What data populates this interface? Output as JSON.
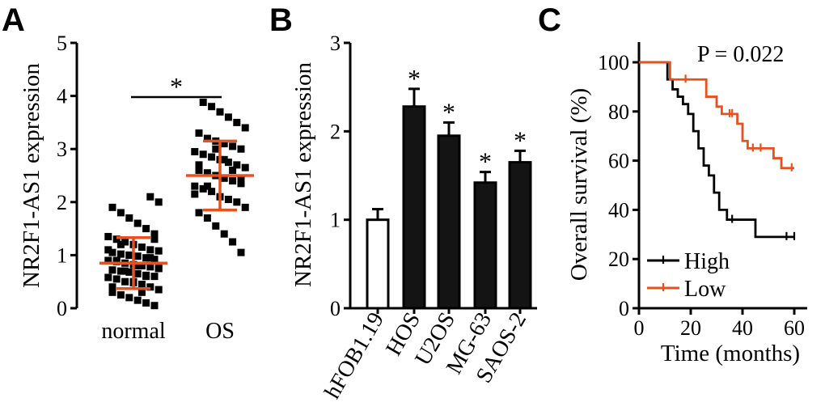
{
  "colors": {
    "accent": "#e8501e",
    "ink": "#000000",
    "bar_fill": "#141414",
    "bar_open": "#ffffff"
  },
  "chart_data": [
    {
      "panel": "A",
      "type": "scatter",
      "ylabel": "NR2F1-AS1 expression",
      "ylim": [
        0,
        5
      ],
      "yticks": [
        "0",
        "1",
        "2",
        "3",
        "4",
        "5"
      ],
      "categories": [
        "normal",
        "OS"
      ],
      "significance": "*",
      "series": [
        {
          "name": "normal",
          "mean": 0.85,
          "sd": 0.48,
          "values": [
            0.05,
            0.1,
            0.15,
            0.2,
            0.25,
            0.3,
            0.35,
            0.4,
            0.45,
            0.48,
            0.5,
            0.55,
            0.58,
            0.6,
            0.62,
            0.65,
            0.68,
            0.7,
            0.72,
            0.75,
            0.78,
            0.8,
            0.82,
            0.85,
            0.88,
            0.9,
            0.92,
            0.95,
            0.98,
            1.0,
            1.02,
            1.05,
            1.08,
            1.1,
            1.15,
            1.2,
            1.25,
            1.3,
            1.35,
            1.4,
            1.5,
            1.6,
            1.7,
            1.8,
            1.9,
            2.0,
            2.1,
            0.3,
            0.5,
            0.7,
            0.9,
            1.1,
            1.3,
            0.6,
            0.8,
            1.0,
            1.2,
            0.4,
            0.75,
            0.95
          ]
        },
        {
          "name": "OS",
          "mean": 2.5,
          "sd": 0.65,
          "values": [
            1.05,
            1.25,
            1.4,
            1.55,
            1.7,
            1.8,
            1.9,
            2.0,
            2.05,
            2.1,
            2.2,
            2.25,
            2.3,
            2.35,
            2.4,
            2.45,
            2.5,
            2.55,
            2.6,
            2.65,
            2.7,
            2.75,
            2.8,
            2.85,
            2.9,
            2.95,
            3.0,
            3.05,
            3.1,
            3.15,
            3.2,
            3.3,
            3.4,
            3.5,
            3.6,
            3.7,
            3.8,
            3.88,
            2.15,
            2.45,
            2.6,
            2.8,
            3.0,
            2.3,
            2.7
          ]
        }
      ]
    },
    {
      "panel": "B",
      "type": "bar",
      "ylabel": "NR2F1-AS1 expression",
      "ylim": [
        0,
        3
      ],
      "yticks": [
        "0",
        "1",
        "2",
        "3"
      ],
      "categories": [
        "hFOB1.19",
        "HOS",
        "U2OS",
        "MG-63",
        "SAOS-2"
      ],
      "values": [
        1.0,
        2.28,
        1.95,
        1.42,
        1.65
      ],
      "errors": [
        0.12,
        0.2,
        0.15,
        0.12,
        0.13
      ],
      "filled": [
        false,
        true,
        true,
        true,
        true
      ],
      "significance": [
        "",
        "*",
        "*",
        "*",
        "*"
      ]
    },
    {
      "panel": "C",
      "type": "line",
      "subtype": "kaplan-meier",
      "xlabel": "Time (months)",
      "ylabel": "Overall survival (%)",
      "xlim": [
        0,
        65
      ],
      "ylim": [
        0,
        100
      ],
      "xticks": [
        "0",
        "20",
        "40",
        "60"
      ],
      "yticks": [
        "0",
        "20",
        "40",
        "60",
        "80",
        "100"
      ],
      "annotation": "P = 0.022",
      "legend_position": "bottom-left",
      "series": [
        {
          "name": "High",
          "color_key": "ink",
          "steps": [
            [
              0,
              100
            ],
            [
              10,
              100
            ],
            [
              11,
              93
            ],
            [
              13,
              89
            ],
            [
              15,
              86
            ],
            [
              17,
              83
            ],
            [
              19,
              79
            ],
            [
              21,
              72
            ],
            [
              23,
              65
            ],
            [
              25,
              58
            ],
            [
              27,
              54
            ],
            [
              29,
              47
            ],
            [
              31,
              40
            ],
            [
              34,
              36
            ],
            [
              45,
              29
            ],
            [
              60,
              29
            ]
          ],
          "censor": [
            [
              36,
              36
            ],
            [
              57,
              29
            ],
            [
              60,
              29
            ]
          ]
        },
        {
          "name": "Low",
          "color_key": "accent",
          "steps": [
            [
              0,
              100
            ],
            [
              10,
              100
            ],
            [
              12,
              93
            ],
            [
              22,
              93
            ],
            [
              26,
              86
            ],
            [
              30,
              82
            ],
            [
              32,
              79
            ],
            [
              37,
              79
            ],
            [
              38,
              75
            ],
            [
              40,
              68
            ],
            [
              42,
              65
            ],
            [
              51,
              65
            ],
            [
              52,
              61
            ],
            [
              55,
              57
            ],
            [
              60,
              57
            ]
          ],
          "censor": [
            [
              18,
              93
            ],
            [
              35,
              79
            ],
            [
              36,
              79
            ],
            [
              44,
              65
            ],
            [
              47,
              65
            ],
            [
              59,
              57
            ]
          ]
        }
      ]
    }
  ]
}
